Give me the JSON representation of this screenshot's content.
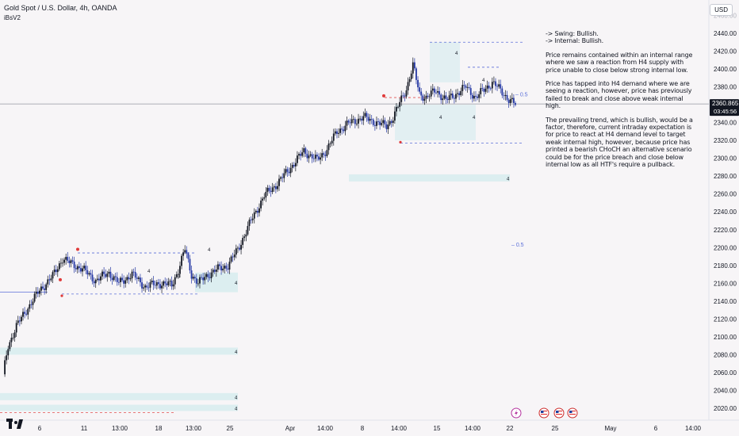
{
  "header": {
    "symbol_line": "Gold Spot / U.S. Dollar, 4h, OANDA",
    "indicator": "iBsV2"
  },
  "currency_button": "USD",
  "analysis": {
    "bias_lines": [
      "-> Swing:  Bullish.",
      "-> Internal:  Bullish."
    ],
    "paragraphs": [
      "Price remains contained within an internal range where we saw a reaction from H4 supply with price unable to close below strong internal low.",
      "Price has tapped into H4 demand where we are seeing a reaction, however, price has previously failed to break and close above weak internal high.",
      "The prevailing trend, which is bullish, would be  a factor, therefore, current intraday expectation is for price to react at H4 demand level to target weak internal high, however, because price has printed a bearish CHoCH an alternative scenario could be for the price breach and close below internal low as all HTF's require a pullback."
    ]
  },
  "colors": {
    "up": "#131722",
    "down": "#2437a3",
    "zone": "#dceef0",
    "dashed_blue": "#5b6fd8",
    "dashed_red": "#e05050",
    "swing_red": "#e03a3a",
    "swing_blue": "#3a4fcf",
    "price_bg": "#131722",
    "hline": "#9598a1"
  },
  "chart_data": {
    "type": "candlestick",
    "instrument": "Gold Spot / U.S. Dollar",
    "timeframe": "4h",
    "source": "OANDA",
    "y_axis": {
      "ticks": [
        2440,
        2420,
        2400,
        2380,
        2360,
        2340,
        2320,
        2300,
        2280,
        2260,
        2240,
        2220,
        2200,
        2180,
        2160,
        2140,
        2120,
        2100,
        2080,
        2060,
        2040,
        2020
      ],
      "range": [
        2010,
        2456
      ]
    },
    "x_axis": {
      "labels": [
        "6",
        "11",
        "13:00",
        "18",
        "13:00",
        "25",
        "Apr",
        "14:00",
        "8",
        "14:00",
        "15",
        "14:00",
        "22",
        "25",
        "May",
        "6",
        "14:00"
      ]
    },
    "last_price": "2360.865",
    "countdown": "03:45:56",
    "anchors": [
      [
        0,
        2058
      ],
      [
        3,
        2090
      ],
      [
        8,
        2112
      ],
      [
        14,
        2130
      ],
      [
        22,
        2152
      ],
      [
        30,
        2168
      ],
      [
        36,
        2188
      ],
      [
        40,
        2183
      ],
      [
        48,
        2176
      ],
      [
        56,
        2163
      ],
      [
        64,
        2172
      ],
      [
        70,
        2160
      ],
      [
        78,
        2170
      ],
      [
        86,
        2156
      ],
      [
        94,
        2160
      ],
      [
        102,
        2158
      ],
      [
        106,
        2175
      ],
      [
        110,
        2198
      ],
      [
        114,
        2170
      ],
      [
        118,
        2160
      ],
      [
        124,
        2170
      ],
      [
        130,
        2176
      ],
      [
        136,
        2180
      ],
      [
        142,
        2198
      ],
      [
        150,
        2230
      ],
      [
        158,
        2258
      ],
      [
        166,
        2272
      ],
      [
        174,
        2290
      ],
      [
        182,
        2308
      ],
      [
        190,
        2298
      ],
      [
        196,
        2310
      ],
      [
        202,
        2330
      ],
      [
        210,
        2340
      ],
      [
        218,
        2346
      ],
      [
        226,
        2340
      ],
      [
        232,
        2336
      ],
      [
        236,
        2346
      ],
      [
        244,
        2378
      ],
      [
        248,
        2404
      ],
      [
        252,
        2372
      ],
      [
        256,
        2368
      ],
      [
        262,
        2376
      ],
      [
        268,
        2365
      ],
      [
        274,
        2372
      ],
      [
        280,
        2380
      ],
      [
        286,
        2368
      ],
      [
        290,
        2375
      ],
      [
        296,
        2385
      ],
      [
        300,
        2378
      ],
      [
        306,
        2366
      ],
      [
        310,
        2360
      ]
    ],
    "zones": [
      {
        "from": 2282,
        "to": 2274,
        "label": "4"
      },
      {
        "from": 2088,
        "to": 2080,
        "label": "4"
      },
      {
        "from": 2037,
        "to": 2029,
        "label": "4"
      },
      {
        "from": 2024,
        "to": 2017,
        "label": "4"
      },
      {
        "from": 2172,
        "to": 2150,
        "label": "4"
      }
    ],
    "fib_level": "0.5",
    "event_markers": [
      "lightning",
      "us-flag",
      "us-flag",
      "us-flag"
    ]
  }
}
